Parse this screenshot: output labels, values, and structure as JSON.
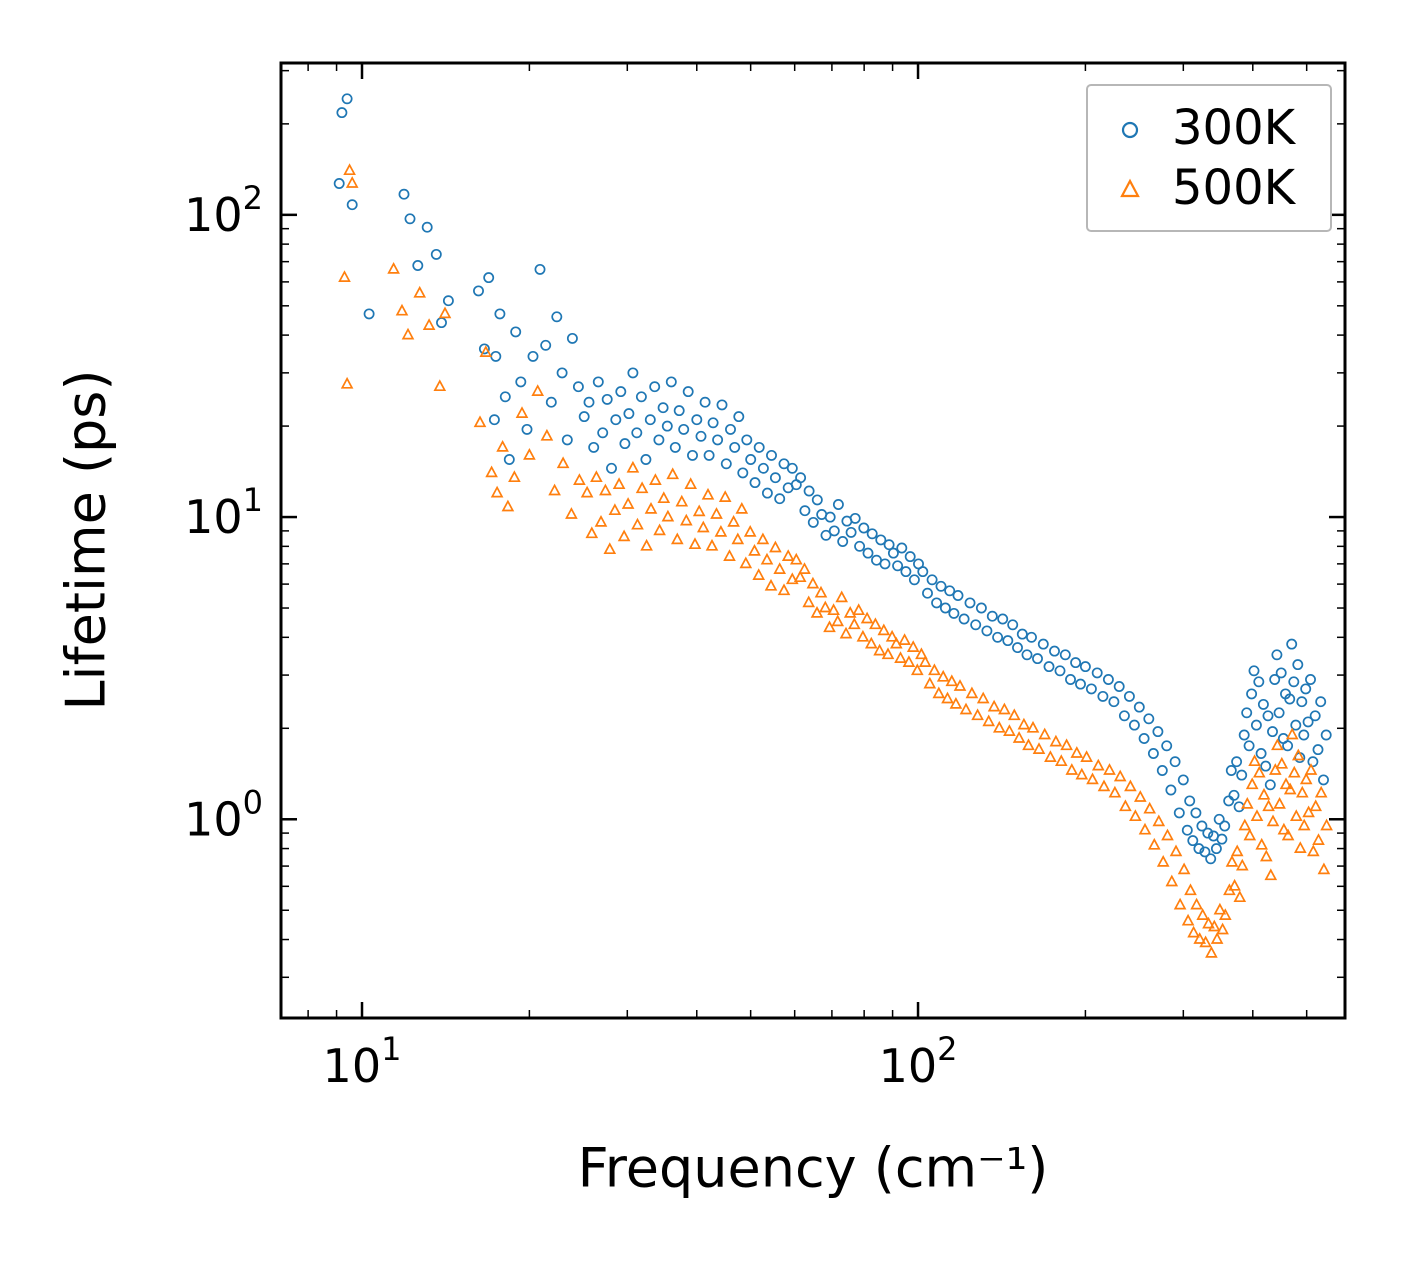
{
  "chart_data": {
    "type": "scatter",
    "title": "",
    "xlabel": "Frequency (cm⁻¹)",
    "ylabel": "Lifetime (ps)",
    "x_scale": "log",
    "y_scale": "log",
    "x_range": [
      7.15,
      586
    ],
    "y_range": [
      0.22,
      318
    ],
    "x_ticks": [
      10,
      100
    ],
    "y_ticks": [
      1,
      10,
      100
    ],
    "grid": false,
    "legend": {
      "position": "upper right",
      "frame": true
    },
    "series": [
      {
        "name": "300K",
        "marker": "circle",
        "color": "#1f77b4",
        "xy": [
          9.2,
          218,
          9.4,
          242,
          9.1,
          127,
          9.6,
          108,
          10.3,
          47,
          11.9,
          117,
          12.2,
          97,
          12.6,
          68,
          13.1,
          91,
          13.6,
          74,
          13.9,
          44,
          14.3,
          52,
          16.2,
          56,
          16.6,
          36,
          16.9,
          62,
          17.3,
          21,
          17.4,
          34,
          17.7,
          47,
          18.1,
          25,
          18.4,
          15.5,
          18.9,
          41,
          19.3,
          28,
          19.8,
          19.5,
          20.3,
          34,
          20.9,
          66,
          21.4,
          37,
          21.9,
          24,
          22.4,
          46,
          22.9,
          30,
          23.4,
          18,
          23.9,
          39,
          24.5,
          27,
          25.1,
          21.5,
          25.6,
          24,
          26.1,
          17,
          26.6,
          28,
          27.1,
          19,
          27.6,
          24.5,
          28.1,
          14.5,
          28.6,
          21,
          29.2,
          26,
          29.7,
          17.5,
          30.2,
          22,
          30.7,
          30,
          31.2,
          19,
          31.8,
          25,
          32.4,
          15.5,
          33,
          21,
          33.6,
          27,
          34.2,
          18,
          34.8,
          23,
          35.4,
          20,
          36,
          28,
          36.6,
          17,
          37.2,
          22.5,
          37.9,
          19.5,
          38.6,
          26,
          39.3,
          16,
          40,
          21,
          40.7,
          18.5,
          41.4,
          24,
          42.1,
          16,
          42.8,
          20.5,
          43.6,
          18,
          44.4,
          23.5,
          45.2,
          15,
          46,
          19.5,
          46.8,
          17,
          47.6,
          21.5,
          48.4,
          14,
          49.2,
          18,
          50,
          15.5,
          50.9,
          13,
          51.8,
          17,
          52.7,
          14.5,
          53.6,
          12,
          54.5,
          16,
          55.4,
          13.5,
          56.4,
          11.5,
          57.4,
          15,
          58.4,
          12.5,
          59.4,
          14.5,
          60.4,
          12.8,
          61.5,
          13.5,
          62.6,
          10.5,
          63.7,
          12.2,
          64.8,
          9.6,
          65.9,
          11.4,
          67.1,
          10.2,
          68.3,
          8.7,
          69.5,
          10,
          70.7,
          9,
          71.9,
          11,
          73.2,
          8.3,
          74.5,
          9.7,
          75.8,
          8.9,
          77.1,
          9.9,
          78.5,
          8,
          79.9,
          9.2,
          81.3,
          7.6,
          82.7,
          8.8,
          84.2,
          7.2,
          85.7,
          8.4,
          87.2,
          7,
          88.7,
          8.1,
          90.3,
          7.6,
          91.9,
          6.9,
          93.5,
          7.9,
          95.1,
          6.6,
          96.8,
          7.4,
          98.5,
          6.2,
          100.2,
          7,
          102,
          6.6,
          104,
          5.6,
          106,
          6.2,
          108,
          5.2,
          110,
          5.9,
          112,
          5,
          114,
          5.7,
          116,
          4.8,
          118,
          5.5,
          121,
          4.6,
          124,
          5.2,
          127,
          4.4,
          130,
          5,
          133,
          4.2,
          136,
          4.7,
          139,
          4,
          142,
          4.6,
          145,
          3.9,
          148,
          4.4,
          151,
          3.7,
          154,
          4.1,
          157,
          3.5,
          160,
          4,
          164,
          3.4,
          168,
          3.8,
          172,
          3.2,
          176,
          3.6,
          180,
          3.1,
          184,
          3.5,
          188,
          2.9,
          192,
          3.3,
          196,
          2.8,
          200,
          3.2,
          205,
          2.7,
          210,
          3.05,
          215,
          2.55,
          220,
          2.9,
          225,
          2.45,
          230,
          2.75,
          235,
          2.2,
          240,
          2.55,
          245,
          2.05,
          250,
          2.35,
          255,
          1.85,
          260,
          2.15,
          265,
          1.65,
          270,
          1.95,
          275,
          1.45,
          280,
          1.75,
          285,
          1.25,
          290,
          1.55,
          295,
          1.05,
          300,
          1.35,
          305,
          0.92,
          308,
          1.15,
          312,
          0.85,
          316,
          1.05,
          320,
          0.8,
          324,
          0.95,
          328,
          0.78,
          332,
          0.9,
          336,
          0.74,
          340,
          0.88,
          344,
          0.8,
          348,
          1,
          352,
          0.86,
          356,
          0.95,
          362,
          1.15,
          366,
          1.45,
          370,
          1.2,
          374,
          1.55,
          378,
          1.1,
          382,
          1.4,
          386,
          1.9,
          390,
          2.25,
          394,
          1.75,
          398,
          2.6,
          402,
          3.1,
          406,
          2.05,
          410,
          2.85,
          414,
          1.65,
          418,
          2.4,
          422,
          1.5,
          426,
          2.2,
          430,
          1.3,
          434,
          1.95,
          438,
          2.9,
          442,
          3.5,
          446,
          2.25,
          450,
          3.05,
          454,
          1.85,
          458,
          2.6,
          462,
          1.75,
          466,
          2.5,
          470,
          3.8,
          474,
          2.85,
          478,
          2.05,
          482,
          3.25,
          486,
          1.6,
          490,
          2.45,
          494,
          1.9,
          498,
          2.7,
          503,
          2.1,
          508,
          2.9,
          513,
          1.55,
          518,
          2.2,
          524,
          1.7,
          530,
          2.45,
          536,
          1.35,
          542,
          1.9
        ]
      },
      {
        "name": "500K",
        "marker": "triangle",
        "color": "#ff7f0e",
        "xy": [
          9.3,
          62,
          9.5,
          140,
          9.6,
          127,
          9.4,
          27.5,
          11.4,
          66,
          11.8,
          48,
          12.1,
          40,
          12.7,
          55,
          13.2,
          43,
          13.8,
          27,
          14.1,
          47,
          16.3,
          20.5,
          16.7,
          35,
          17.1,
          14,
          17.5,
          12,
          17.9,
          17,
          18.3,
          10.8,
          18.8,
          13.5,
          19.4,
          22,
          20,
          16,
          20.7,
          26,
          21.5,
          18.5,
          22.2,
          12.2,
          23,
          15,
          23.8,
          10.2,
          24.6,
          13.2,
          25.4,
          12,
          25.9,
          8.8,
          26.4,
          13.5,
          26.9,
          9.6,
          27.4,
          12.2,
          27.9,
          7.8,
          28.5,
          10.5,
          29,
          12.8,
          29.6,
          8.6,
          30.1,
          11,
          30.7,
          14.5,
          31.3,
          9.4,
          31.9,
          12.4,
          32.5,
          8,
          33.1,
          10.6,
          33.7,
          13.2,
          34.3,
          9,
          34.9,
          11.5,
          35.5,
          10,
          36.2,
          13.8,
          36.9,
          8.4,
          37.6,
          11.2,
          38.3,
          9.7,
          39,
          12.8,
          39.7,
          8.1,
          40.4,
          10.4,
          41.1,
          9.2,
          41.9,
          11.8,
          42.6,
          8,
          43.4,
          10.2,
          44.2,
          8.9,
          45,
          11.6,
          45.8,
          7.4,
          46.6,
          9.6,
          47.4,
          8.4,
          48.2,
          10.6,
          49,
          7,
          49.9,
          8.9,
          50.8,
          7.7,
          51.7,
          6.4,
          52.6,
          8.4,
          53.5,
          7.2,
          54.4,
          5.9,
          55.4,
          7.9,
          56.4,
          6.7,
          57.4,
          5.7,
          58.4,
          7.4,
          59.4,
          6.2,
          60.4,
          7.2,
          61.4,
          6.3,
          62.5,
          6.7,
          63.6,
          5.2,
          64.7,
          6,
          65.8,
          4.8,
          66.9,
          5.6,
          68.1,
          5,
          69.3,
          4.3,
          70.5,
          4.9,
          71.7,
          4.5,
          72.9,
          5.4,
          74.2,
          4.1,
          75.5,
          4.8,
          76.8,
          4.4,
          78.2,
          4.9,
          79.6,
          4,
          81,
          4.6,
          82.4,
          3.8,
          83.8,
          4.4,
          85.3,
          3.6,
          86.8,
          4.2,
          88.3,
          3.5,
          89.8,
          4,
          91.4,
          3.8,
          93,
          3.4,
          94.6,
          3.9,
          96.3,
          3.3,
          98,
          3.7,
          99.7,
          3.1,
          101.4,
          3.5,
          103,
          3.3,
          105,
          2.8,
          107,
          3.1,
          109,
          2.6,
          111,
          2.95,
          113,
          2.5,
          115,
          2.85,
          117,
          2.4,
          119,
          2.75,
          122,
          2.3,
          125,
          2.6,
          128,
          2.2,
          131,
          2.5,
          134,
          2.1,
          137,
          2.35,
          140,
          2,
          143,
          2.3,
          146,
          1.95,
          149,
          2.2,
          152,
          1.85,
          155,
          2.05,
          158,
          1.75,
          161,
          2,
          165,
          1.7,
          169,
          1.9,
          173,
          1.6,
          177,
          1.8,
          181,
          1.55,
          185,
          1.75,
          189,
          1.45,
          193,
          1.65,
          197,
          1.4,
          201,
          1.6,
          206,
          1.35,
          211,
          1.5,
          216,
          1.28,
          221,
          1.45,
          226,
          1.22,
          231,
          1.38,
          236,
          1.1,
          241,
          1.28,
          246,
          1.02,
          251,
          1.18,
          256,
          0.92,
          261,
          1.08,
          266,
          0.82,
          271,
          0.98,
          276,
          0.72,
          281,
          0.88,
          286,
          0.62,
          291,
          0.78,
          296,
          0.52,
          301,
          0.68,
          306,
          0.46,
          309,
          0.58,
          313,
          0.42,
          317,
          0.52,
          321,
          0.4,
          325,
          0.48,
          329,
          0.39,
          333,
          0.45,
          337,
          0.36,
          341,
          0.44,
          345,
          0.4,
          349,
          0.5,
          353,
          0.43,
          357,
          0.48,
          363,
          0.58,
          367,
          0.72,
          371,
          0.6,
          375,
          0.78,
          379,
          0.55,
          383,
          0.7,
          387,
          0.95,
          391,
          1.12,
          395,
          0.88,
          399,
          1.3,
          403,
          1.55,
          407,
          1.02,
          411,
          1.42,
          415,
          0.82,
          419,
          1.2,
          423,
          0.75,
          427,
          1.1,
          431,
          0.65,
          435,
          0.98,
          439,
          1.45,
          443,
          1.75,
          447,
          1.12,
          451,
          1.52,
          455,
          0.92,
          459,
          1.3,
          463,
          0.88,
          467,
          1.25,
          471,
          1.9,
          475,
          1.42,
          479,
          1.02,
          483,
          1.62,
          487,
          0.8,
          491,
          1.22,
          495,
          0.95,
          499,
          1.35,
          504,
          1.05,
          509,
          1.45,
          514,
          0.78,
          519,
          1.1,
          525,
          0.85,
          531,
          1.22,
          537,
          0.68,
          543,
          0.95
        ]
      }
    ]
  }
}
